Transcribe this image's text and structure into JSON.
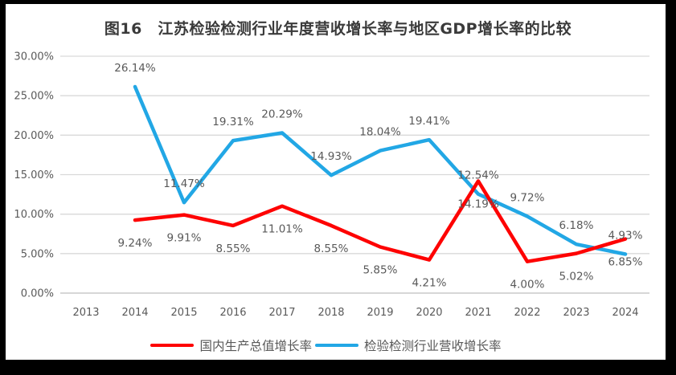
{
  "chart_data": {
    "type": "line",
    "title": "图16　江苏检验检测行业年度营收增长率与地区GDP增长率的比较",
    "categories": [
      "2013",
      "2014",
      "2015",
      "2016",
      "2017",
      "2018",
      "2019",
      "2020",
      "2021",
      "2022",
      "2023",
      "2024"
    ],
    "y_ticks": [
      "30.00%",
      "25.00%",
      "20.00%",
      "15.00%",
      "10.00%",
      "5.00%",
      "0.00%"
    ],
    "ylim": [
      0,
      30
    ],
    "y_tick_step": 5,
    "grid": true,
    "legend_position": "bottom",
    "series": [
      {
        "id": "gdp",
        "name": "国内生产总值增长率",
        "color": "#FE0202",
        "label_side": "below",
        "values": [
          null,
          9.24,
          9.91,
          8.55,
          11.01,
          8.55,
          5.85,
          4.21,
          14.19,
          4.0,
          5.02,
          6.85
        ]
      },
      {
        "id": "testing",
        "name": "检验检测行业营收增长率",
        "color": "#22A7E5",
        "label_side": "above",
        "values": [
          null,
          26.14,
          11.47,
          19.31,
          20.29,
          14.93,
          18.04,
          19.41,
          12.54,
          9.72,
          6.18,
          4.93
        ]
      }
    ]
  },
  "colors": {
    "frame_border": "#000000",
    "background": "#FFFFFF",
    "gridline": "#D9D9D9",
    "axis_line": "#BFBFBF",
    "label_text": "#595959",
    "title_text": "#3A3A3A"
  }
}
